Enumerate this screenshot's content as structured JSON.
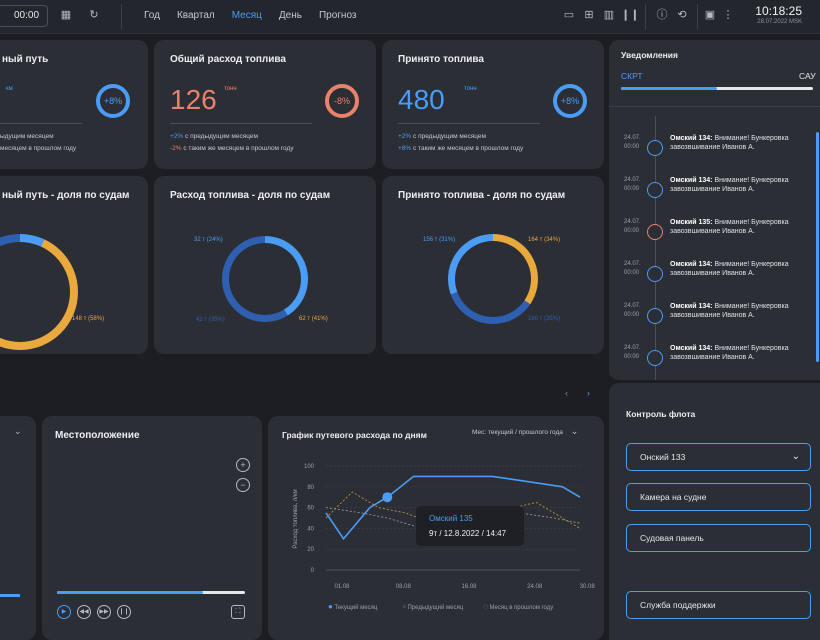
{
  "topbar": {
    "time_value": "00:00",
    "tabs": [
      {
        "label": "Год"
      },
      {
        "label": "Квартал"
      },
      {
        "label": "Месяц"
      },
      {
        "label": "День"
      },
      {
        "label": "Прогноз"
      }
    ],
    "clock_time": "10:18:25",
    "clock_date": "28.07.2022 MSK"
  },
  "cards": {
    "path": {
      "title": "ный путь",
      "unit": "км",
      "pct": "+8%",
      "cmp1": "ыдущим месяцем",
      "cmp2": "месяцем в прошлом году"
    },
    "fuel_total": {
      "title": "Общий расход топлива",
      "value": "126",
      "unit": "тонн",
      "pct": "-8%",
      "cmp1_val": "+2%",
      "cmp1_text": " с предыдущим месяцем",
      "cmp2_val": "-2%",
      "cmp2_text": " с таким же месяцем в прошлом году"
    },
    "fuel_received": {
      "title": "Принято топлива",
      "value": "480",
      "unit": "тонн",
      "pct": "+8%",
      "cmp1_val": "+2%",
      "cmp1_text": " с предыдущим месяцем",
      "cmp2_val": "+8%",
      "cmp2_text": " с таким же месяцем в прошлом году"
    },
    "path_share": {
      "title": "ный путь - доля по судам",
      "label_right": "148 т (58%)"
    },
    "fuel_share": {
      "title": "Расход топлива - доля по судам",
      "label_left_top": "32 т (24%)",
      "label_left_bottom": "42 т (35%)",
      "label_right": "62 т (41%)"
    },
    "received_share": {
      "title": "Принято топлива - доля по судам",
      "label_left_top": "156 т (31%)",
      "label_right_top": "164 т (34%)",
      "label_right_bottom": "180 т (35%)"
    }
  },
  "notifications": {
    "title": "Уведомления",
    "tab_active": "СКРТ",
    "tab_other": "САУ",
    "items": [
      {
        "date": "24.07.",
        "time": "00:00",
        "vessel": "Омский 134:",
        "text": " Внимание! Бункеровка завозвшивание Иванов А.",
        "color": "#4b9cf5"
      },
      {
        "date": "24.07.",
        "time": "00:00",
        "vessel": "Омский 134:",
        "text": " Внимание! Бункеровка завозвшивание Иванов А.",
        "color": "#4b9cf5"
      },
      {
        "date": "24.07.",
        "time": "00:00",
        "vessel": "Омский 135:",
        "text": " Внимание! Бункеровка завозвшивание Иванов А.",
        "color": "#e9826a"
      },
      {
        "date": "24.07.",
        "time": "00:00",
        "vessel": "Омский 134:",
        "text": " Внимание! Бункеровка завозвшивание Иванов А.",
        "color": "#4b9cf5"
      },
      {
        "date": "24.07.",
        "time": "00:00",
        "vessel": "Омский 134:",
        "text": " Внимание! Бункеровка завозвшивание Иванов А.",
        "color": "#4b9cf5"
      },
      {
        "date": "24.07.",
        "time": "00:00",
        "vessel": "Омский 134:",
        "text": " Внимание! Бункеровка завозвшивание Иванов А.",
        "color": "#4b9cf5"
      }
    ]
  },
  "fleet": {
    "title": "Контроль флота",
    "select_value": "Онский 133",
    "btn_camera": "Камера на судне",
    "btn_panel": "Судовая панель",
    "btn_support": "Служба поддержки"
  },
  "location": {
    "title": "Местоположение",
    "zoom_in": "+",
    "zoom_out": "−"
  },
  "chart_data": {
    "type": "line",
    "title": "График путевого расхода по дням",
    "period_select": "Мес: текущий / прошлого года",
    "ylabel": "Расход топлива, л/км",
    "ylim": [
      0,
      100
    ],
    "yticks": [
      "100",
      "80",
      "60",
      "40",
      "20",
      "0"
    ],
    "xticks": [
      "01.08",
      "08.08",
      "16.08",
      "24.08",
      "30.08"
    ],
    "series": [
      {
        "name": "Текущий месяц",
        "color": "#4b9cf5",
        "x": [
          0,
          2,
          5,
          7,
          10,
          15,
          19,
          23,
          27,
          29
        ],
        "values": [
          55,
          30,
          60,
          70,
          90,
          90,
          90,
          85,
          80,
          70
        ]
      },
      {
        "name": "Предыдущий месяц",
        "color": "#9aa0aa",
        "x": [
          0,
          4,
          7,
          11,
          16,
          22,
          26,
          29
        ],
        "values": [
          60,
          55,
          50,
          40,
          45,
          55,
          50,
          45
        ]
      },
      {
        "name": "Месяц в прошлом году",
        "color": "#c9a23a",
        "x": [
          0,
          3,
          6,
          9,
          14,
          19,
          24,
          29
        ],
        "values": [
          50,
          75,
          60,
          55,
          40,
          55,
          65,
          40
        ]
      }
    ],
    "tooltip": {
      "title": "Омский 135",
      "value": "9т / 12.8.2022 / 14:47"
    }
  }
}
